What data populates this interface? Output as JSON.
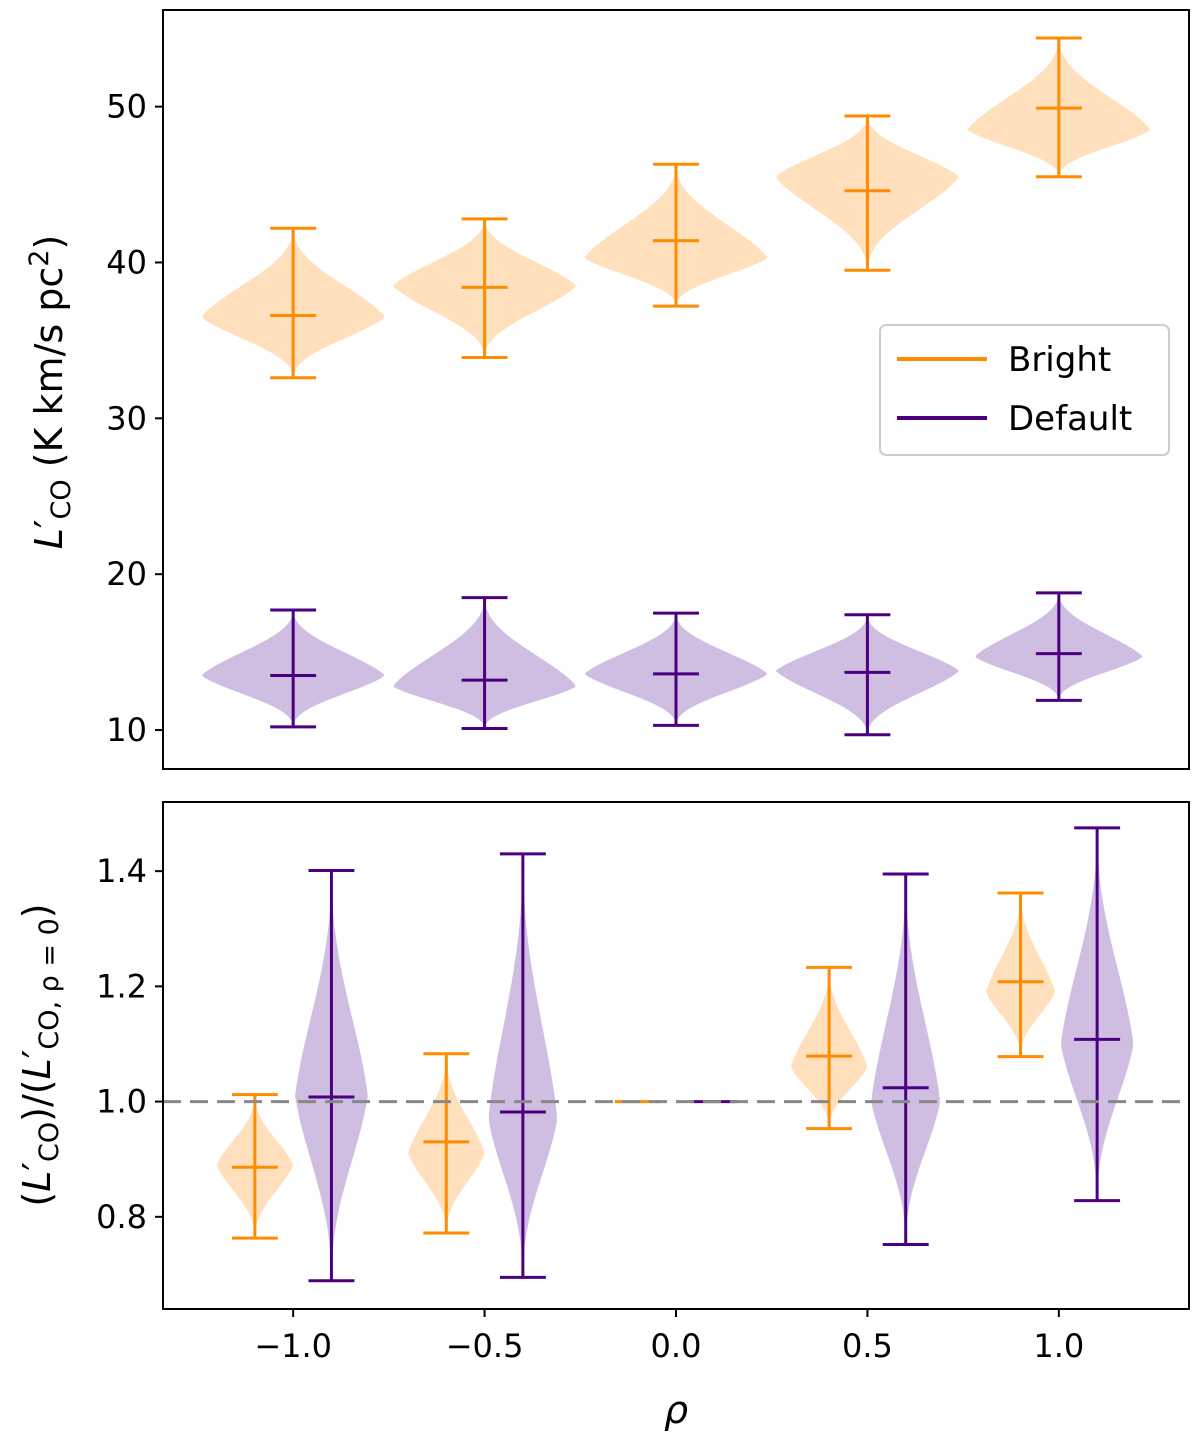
{
  "chart_data": [
    {
      "type": "violin",
      "panel": "top",
      "xlabel": "",
      "ylabel_main": "L",
      "ylabel_prime": "′",
      "ylabel_sub": "CO",
      "ylabel_units": " (K km/s pc",
      "ylabel_units_sup": "2",
      "ylabel_units_close": ")",
      "ylim": [
        7.5,
        56.2
      ],
      "yticks": [
        10,
        20,
        30,
        40,
        50
      ],
      "ytick_labels": [
        "10",
        "20",
        "30",
        "40",
        "50"
      ],
      "legend": {
        "position": "right",
        "entries": [
          "Bright",
          "Default"
        ]
      },
      "series": [
        {
          "name": "Bright",
          "color": "#ff8c00",
          "fill": "#ffd9b0",
          "violins": [
            {
              "rho": -1.0,
              "min": 32.6,
              "median": 36.6,
              "max": 42.2,
              "peak": 36.5,
              "halfwidth": 0.24
            },
            {
              "rho": -0.5,
              "min": 33.9,
              "median": 38.4,
              "max": 42.8,
              "peak": 38.5,
              "halfwidth": 0.24
            },
            {
              "rho": 0.0,
              "min": 37.2,
              "median": 41.4,
              "max": 46.3,
              "peak": 40.3,
              "halfwidth": 0.24
            },
            {
              "rho": 0.5,
              "min": 39.5,
              "median": 44.6,
              "max": 49.4,
              "peak": 45.5,
              "halfwidth": 0.24
            },
            {
              "rho": 1.0,
              "min": 45.5,
              "median": 49.9,
              "max": 54.4,
              "peak": 48.5,
              "halfwidth": 0.24
            }
          ]
        },
        {
          "name": "Default",
          "color": "#4b0082",
          "fill": "#c7b3dc",
          "violins": [
            {
              "rho": -1.0,
              "min": 10.2,
              "median": 13.5,
              "max": 17.7,
              "peak": 13.5,
              "halfwidth": 0.24
            },
            {
              "rho": -0.5,
              "min": 10.1,
              "median": 13.2,
              "max": 18.5,
              "peak": 12.8,
              "halfwidth": 0.24
            },
            {
              "rho": 0.0,
              "min": 10.3,
              "median": 13.6,
              "max": 17.5,
              "peak": 13.6,
              "halfwidth": 0.24
            },
            {
              "rho": 0.5,
              "min": 9.7,
              "median": 13.7,
              "max": 17.4,
              "peak": 13.8,
              "halfwidth": 0.24
            },
            {
              "rho": 1.0,
              "min": 11.9,
              "median": 14.9,
              "max": 18.8,
              "peak": 14.7,
              "halfwidth": 0.22
            }
          ]
        }
      ]
    },
    {
      "type": "violin",
      "panel": "bottom",
      "xlabel": "ρ",
      "ylabel_text": "(L′CO)/(L′CO, ρ = 0)",
      "ylabel_parts": [
        "(",
        "L",
        "′",
        "CO",
        ")/(",
        "L",
        "′",
        "CO, ρ = 0",
        ")"
      ],
      "xlim": [
        -1.34,
        1.34
      ],
      "ylim": [
        0.64,
        1.52
      ],
      "xticks": [
        -1.0,
        -0.5,
        0.0,
        0.5,
        1.0
      ],
      "xtick_labels": [
        "−1.0",
        "−0.5",
        "0.0",
        "0.5",
        "1.0"
      ],
      "yticks": [
        0.8,
        1.0,
        1.2,
        1.4
      ],
      "ytick_labels": [
        "0.8",
        "1.0",
        "1.2",
        "1.4"
      ],
      "reference_line": {
        "y": 1.0,
        "style": "dashed",
        "color": "#888888"
      },
      "series": [
        {
          "name": "Bright",
          "color": "#ff8c00",
          "fill": "#ffd9b0",
          "violins": [
            {
              "x": -1.1,
              "min": 0.763,
              "median": 0.886,
              "max": 1.012,
              "peak": 0.89,
              "halfwidth": 0.1
            },
            {
              "x": -0.6,
              "min": 0.772,
              "median": 0.93,
              "max": 1.083,
              "peak": 0.91,
              "halfwidth": 0.1
            },
            {
              "x": -0.1,
              "min": 1.0,
              "median": 1.0,
              "max": 1.0,
              "peak": 1.0,
              "halfwidth": 0.08
            },
            {
              "x": 0.4,
              "min": 0.953,
              "median": 1.079,
              "max": 1.233,
              "peak": 1.06,
              "halfwidth": 0.1
            },
            {
              "x": 0.9,
              "min": 1.078,
              "median": 1.208,
              "max": 1.362,
              "peak": 1.19,
              "halfwidth": 0.09
            }
          ]
        },
        {
          "name": "Default",
          "color": "#4b0082",
          "fill": "#c7b3dc",
          "violins": [
            {
              "x": -0.9,
              "min": 0.689,
              "median": 1.008,
              "max": 1.401,
              "peak": 1.01,
              "halfwidth": 0.095
            },
            {
              "x": -0.4,
              "min": 0.695,
              "median": 0.982,
              "max": 1.43,
              "peak": 0.97,
              "halfwidth": 0.09
            },
            {
              "x": 0.1,
              "min": 1.0,
              "median": 1.0,
              "max": 1.0,
              "peak": 1.0,
              "halfwidth": 0.08
            },
            {
              "x": 0.6,
              "min": 0.752,
              "median": 1.024,
              "max": 1.395,
              "peak": 1.0,
              "halfwidth": 0.09
            },
            {
              "x": 1.1,
              "min": 0.828,
              "median": 1.108,
              "max": 1.475,
              "peak": 1.1,
              "halfwidth": 0.095
            }
          ]
        }
      ]
    }
  ]
}
